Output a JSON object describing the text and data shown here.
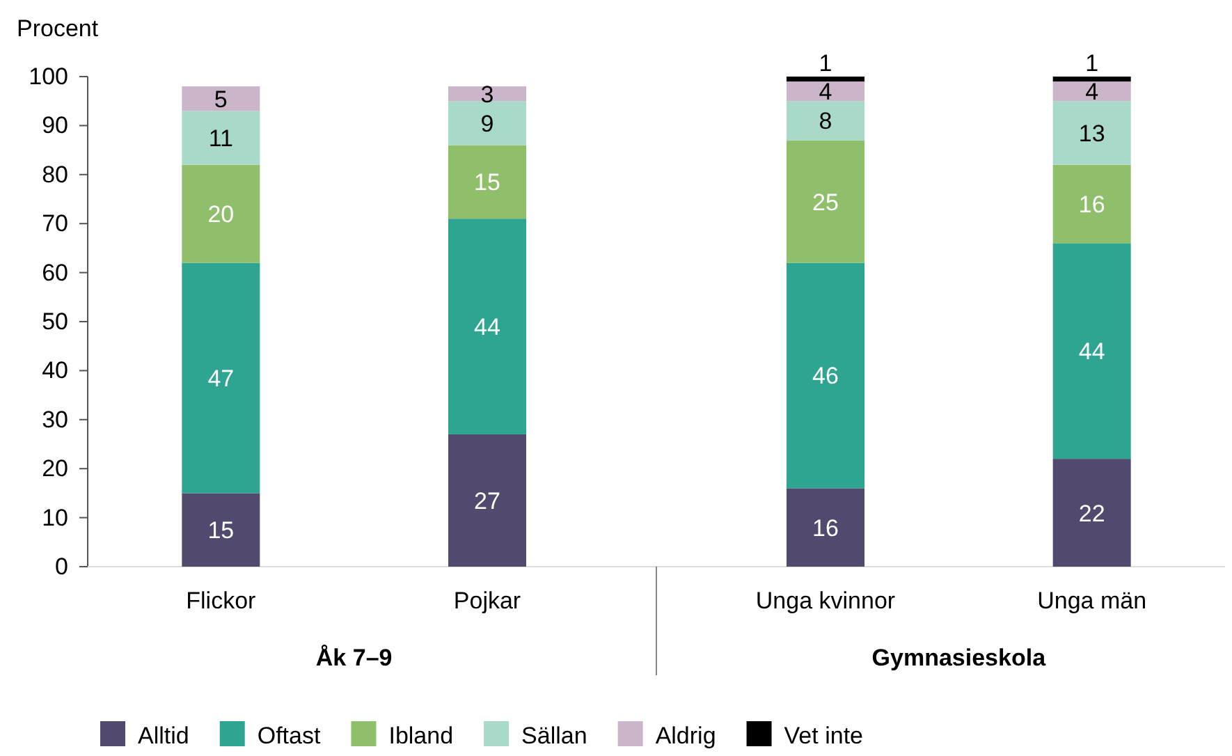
{
  "chart_data": {
    "type": "bar",
    "stacked": true,
    "ylabel": "Procent",
    "categories": [
      "Flickor",
      "Pojkar",
      "Unga kvinnor",
      "Unga män"
    ],
    "series": [
      {
        "name": "Alltid",
        "color": "#514a6e",
        "values": [
          15,
          27,
          16,
          22
        ]
      },
      {
        "name": "Oftast",
        "color": "#2ea590",
        "values": [
          47,
          44,
          46,
          44
        ]
      },
      {
        "name": "Ibland",
        "color": "#8fbf6b",
        "values": [
          20,
          15,
          25,
          16
        ]
      },
      {
        "name": "Sällan",
        "color": "#a9d9c9",
        "values": [
          11,
          9,
          8,
          13
        ]
      },
      {
        "name": "Aldrig",
        "color": "#cbb6c9",
        "values": [
          5,
          3,
          4,
          4
        ]
      },
      {
        "name": "Vet inte",
        "color": "#000000",
        "values": [
          null,
          null,
          1,
          1
        ]
      }
    ],
    "ylim": [
      0,
      100
    ],
    "yticks": [
      0,
      10,
      20,
      30,
      40,
      50,
      60,
      70,
      80,
      90,
      100
    ],
    "data_labels": true,
    "grid": false,
    "legend": "bottom",
    "annotations": [
      "Åk 7–9",
      "Gymnasieskola"
    ]
  }
}
